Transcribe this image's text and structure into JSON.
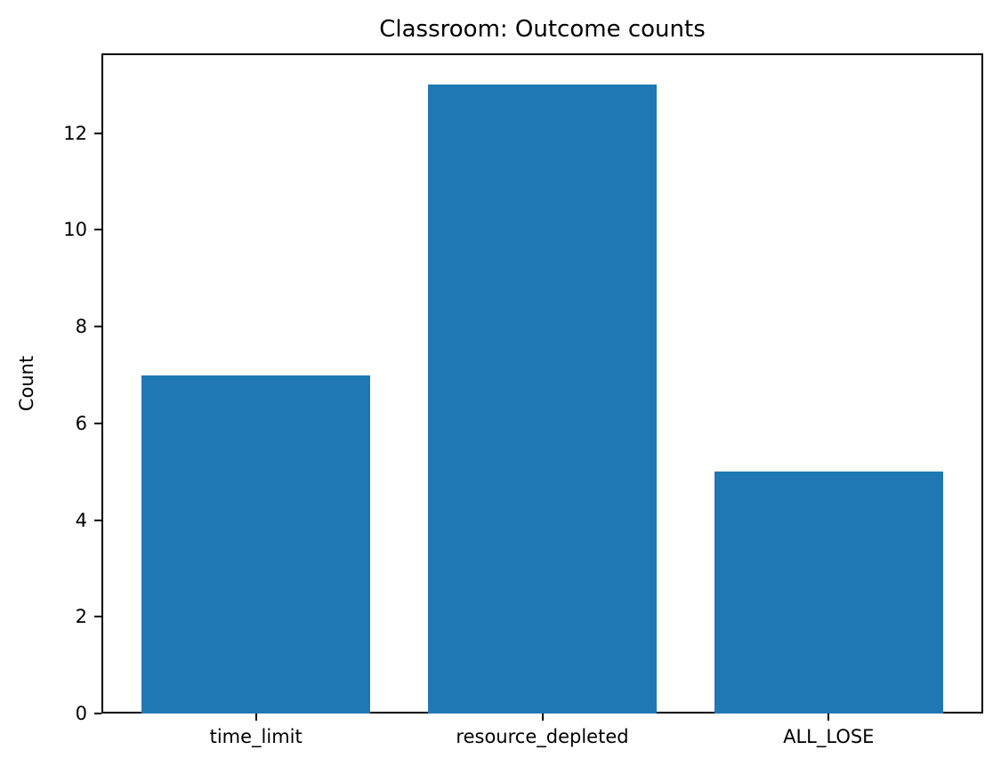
{
  "chart_data": {
    "type": "bar",
    "title": "Classroom: Outcome counts",
    "xlabel": "",
    "ylabel": "Count",
    "categories": [
      "time_limit",
      "resource_depleted",
      "ALL_LOSE"
    ],
    "values": [
      7,
      13,
      5
    ],
    "yticks": [
      0,
      2,
      4,
      6,
      8,
      10,
      12
    ],
    "ylim": [
      0,
      13.65
    ],
    "bar_color": "#1f77b4",
    "bar_width_fraction": 0.8,
    "grid": false,
    "legend": false,
    "axis_color": "#000000",
    "background_color": "#ffffff"
  }
}
